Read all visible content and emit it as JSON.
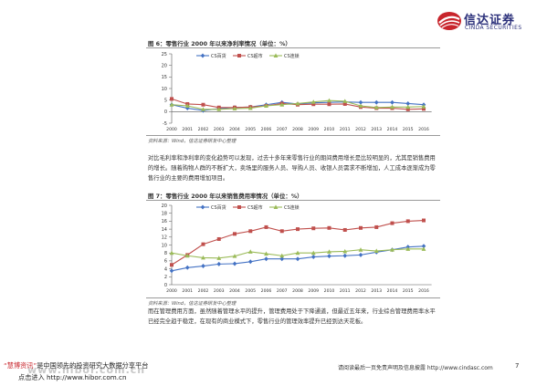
{
  "header": {
    "logo_cn": "信达证券",
    "logo_en": "CINDA SECURITIES"
  },
  "figure6": {
    "title": "图 6：零售行业 2000 年以来净利率情况（单位：%）",
    "source": "资料来源：Wind，信达证券研发中心整理"
  },
  "paragraph1": "对比毛利率和净利率的变化趋势可以发现，过去十多年来零售行业的期间费用增长是比较明显的，尤其是销售费用的增长。随着购物人群的不断扩大，卖场里的服务人员、导购人员、收银人员需求不断增加，人工成本逐渐成为零售行业的主要的费用增加项目。",
  "figure7": {
    "title": "图 7：零售行业 2000 年以来销售费用率情况（单位：%）"
  },
  "paragraph2": "而在管理费用方面，虽然随着管理水平的提升，管理费用处于下降通道，但最近五年来，行业综合管理费用率水平已经完全趋于稳定，在现有的商业模式下，零售行业的管理效率提升已经到达天花板。",
  "watermark": {
    "line1_quote": "“慧博资讯”",
    "line1_rest": "是中国领先的投资研究大数据分享平台",
    "line2": "点击进入 http://www.hibor.com.cn",
    "big": "www.hibor.com.cn"
  },
  "footer": {
    "text": "请阅读最后一页免责声明及信息披露 http://www.cindasc.com",
    "page": "7"
  },
  "colors": {
    "cs_baihuo": "#4472c4",
    "cs_chaoshi": "#c0504d",
    "cs_lianshuo": "#9bbb59"
  },
  "chart_data": [
    {
      "type": "line",
      "title": "图 6：零售行业 2000 年以来净利率情况（单位：%）",
      "x": [
        "2000",
        "2001",
        "2002",
        "2003",
        "2004",
        "2005",
        "2006",
        "2007",
        "2008",
        "2009",
        "2010",
        "2011",
        "2012",
        "2013",
        "2014",
        "2015",
        "2016"
      ],
      "ylim": [
        -5,
        25
      ],
      "yticks": [
        -5,
        0,
        5,
        10,
        15,
        20,
        25
      ],
      "legend": "top-center",
      "series": [
        {
          "name": "CS百货",
          "color": "#4472c4",
          "marker": "diamond",
          "values": [
            3.0,
            1.5,
            0.5,
            1.3,
            1.8,
            2.0,
            3.0,
            4.0,
            3.3,
            3.8,
            4.0,
            4.2,
            4.0,
            4.0,
            4.0,
            3.5,
            3.0
          ]
        },
        {
          "name": "CS超市",
          "color": "#c0504d",
          "marker": "square",
          "values": [
            5.5,
            3.3,
            3.0,
            1.8,
            1.8,
            2.0,
            2.5,
            3.5,
            3.0,
            3.2,
            3.2,
            3.3,
            2.0,
            1.5,
            1.5,
            1.0,
            1.2
          ]
        },
        {
          "name": "CS连锁",
          "color": "#9bbb59",
          "marker": "triangle",
          "values": [
            3.0,
            2.5,
            1.0,
            1.0,
            1.3,
            1.5,
            2.5,
            3.0,
            3.5,
            4.2,
            4.8,
            4.5,
            2.5,
            1.8,
            2.0,
            2.0,
            2.2
          ]
        }
      ]
    },
    {
      "type": "line",
      "title": "图 7：零售行业 2000 年以来销售费用率情况（单位：%）",
      "x": [
        "2000",
        "2001",
        "2002",
        "2003",
        "2004",
        "2005",
        "2006",
        "2007",
        "2008",
        "2009",
        "2010",
        "2011",
        "2012",
        "2013",
        "2014",
        "2015",
        "2016"
      ],
      "ylim": [
        0,
        20
      ],
      "yticks": [
        0,
        2,
        4,
        6,
        8,
        10,
        12,
        14,
        16,
        18,
        20
      ],
      "legend": "top-center",
      "series": [
        {
          "name": "CS百货",
          "color": "#4472c4",
          "marker": "diamond",
          "values": [
            3.5,
            4.3,
            4.7,
            5.2,
            5.3,
            5.8,
            6.5,
            6.5,
            6.5,
            7.0,
            7.2,
            7.3,
            7.5,
            8.2,
            8.8,
            9.5,
            9.7
          ]
        },
        {
          "name": "CS超市",
          "color": "#c0504d",
          "marker": "square",
          "values": [
            5.0,
            7.5,
            10.2,
            11.5,
            12.8,
            13.5,
            14.5,
            13.5,
            14.0,
            14.2,
            14.3,
            13.8,
            14.3,
            14.5,
            15.5,
            16.0,
            16.2
          ]
        },
        {
          "name": "CS连锁",
          "color": "#9bbb59",
          "marker": "triangle",
          "values": [
            8.0,
            7.3,
            6.8,
            6.7,
            7.2,
            8.3,
            7.8,
            7.3,
            8.0,
            8.0,
            8.3,
            8.4,
            8.8,
            8.5,
            8.8,
            9.0,
            9.0
          ]
        }
      ]
    }
  ]
}
